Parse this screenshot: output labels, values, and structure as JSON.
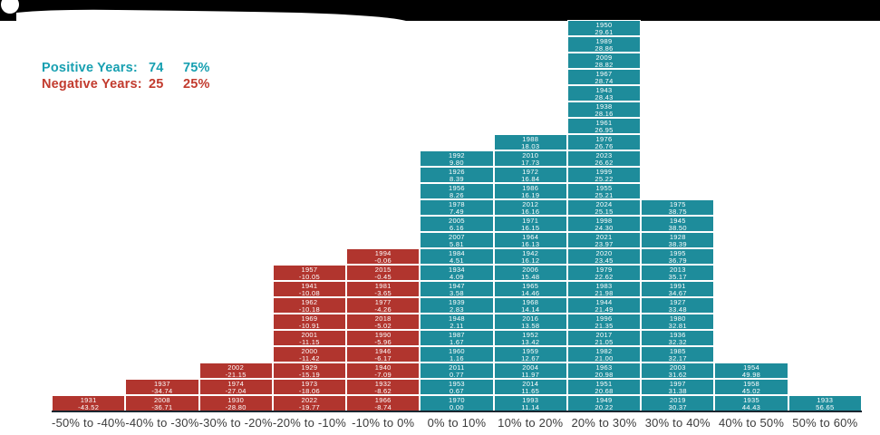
{
  "legend": {
    "positive_label": "Positive Years:",
    "positive_count": "74",
    "positive_pct": "75%",
    "negative_label": "Negative Years:",
    "negative_count": "25",
    "negative_pct": "25%"
  },
  "colors": {
    "positive_cell": "#1E8C9B",
    "negative_cell": "#B1352E",
    "legend_positive_text": "#18A0B1",
    "legend_negative_text": "#C23B2E",
    "axis_line": "#1A2630",
    "axis_text": "#3C3C3C",
    "cell_text": "#FFFFFF"
  },
  "chart_data": {
    "type": "bar",
    "title": "",
    "xlabel": "",
    "ylabel": "",
    "legend_position": "top-left",
    "grid": false,
    "note": "Stacked-year histogram of annual returns; each cell shows year and return %, stacked top-to-bottom in descending return order within each bin.",
    "categories": [
      "-50% to -40%",
      "-40% to -30%",
      "-30% to -20%",
      "-20% to -10%",
      "-10% to 0%",
      "0% to 10%",
      "10% to 20%",
      "20% to 30%",
      "30% to 40%",
      "40% to 50%",
      "50% to 60%"
    ],
    "values": [
      1,
      2,
      3,
      9,
      10,
      16,
      17,
      24,
      13,
      3,
      1
    ],
    "bins": [
      {
        "range": "-50% to -40%",
        "sign": "negative",
        "entries": [
          {
            "year": 1931,
            "value": -43.52
          }
        ]
      },
      {
        "range": "-40% to -30%",
        "sign": "negative",
        "entries": [
          {
            "year": 1937,
            "value": -34.74
          },
          {
            "year": 2008,
            "value": -36.71
          }
        ]
      },
      {
        "range": "-30% to -20%",
        "sign": "negative",
        "entries": [
          {
            "year": 2002,
            "value": -21.15
          },
          {
            "year": 1974,
            "value": -27.04
          },
          {
            "year": 1930,
            "value": -28.8
          }
        ]
      },
      {
        "range": "-20% to -10%",
        "sign": "negative",
        "entries": [
          {
            "year": 1957,
            "value": -10.05
          },
          {
            "year": 1941,
            "value": -10.08
          },
          {
            "year": 1962,
            "value": -10.18
          },
          {
            "year": 1969,
            "value": -10.91
          },
          {
            "year": 2001,
            "value": -11.15
          },
          {
            "year": 2000,
            "value": -11.42
          },
          {
            "year": 1929,
            "value": -15.19
          },
          {
            "year": 1973,
            "value": -18.06
          },
          {
            "year": 2022,
            "value": -19.77
          }
        ]
      },
      {
        "range": "-10% to 0%",
        "sign": "negative",
        "entries": [
          {
            "year": 1994,
            "value": -0.06
          },
          {
            "year": 2015,
            "value": -0.45
          },
          {
            "year": 1981,
            "value": -3.65
          },
          {
            "year": 1977,
            "value": -4.26
          },
          {
            "year": 2018,
            "value": -5.02
          },
          {
            "year": 1990,
            "value": -5.96
          },
          {
            "year": 1946,
            "value": -6.17
          },
          {
            "year": 1940,
            "value": -7.09
          },
          {
            "year": 1932,
            "value": -8.62
          },
          {
            "year": 1966,
            "value": -8.74
          }
        ]
      },
      {
        "range": "0% to 10%",
        "sign": "positive",
        "entries": [
          {
            "year": 1992,
            "value": 9.8
          },
          {
            "year": 1926,
            "value": 8.39
          },
          {
            "year": 1956,
            "value": 8.26
          },
          {
            "year": 1978,
            "value": 7.49
          },
          {
            "year": 2005,
            "value": 6.16
          },
          {
            "year": 2007,
            "value": 5.81
          },
          {
            "year": 1984,
            "value": 4.51
          },
          {
            "year": 1934,
            "value": 4.09
          },
          {
            "year": 1947,
            "value": 3.58
          },
          {
            "year": 1939,
            "value": 2.83
          },
          {
            "year": 1948,
            "value": 2.11
          },
          {
            "year": 1987,
            "value": 1.67
          },
          {
            "year": 1960,
            "value": 1.16
          },
          {
            "year": 2011,
            "value": 0.77
          },
          {
            "year": 1953,
            "value": 0.67
          },
          {
            "year": 1970,
            "value": 0.0
          }
        ]
      },
      {
        "range": "10% to 20%",
        "sign": "positive",
        "entries": [
          {
            "year": 1988,
            "value": 18.03
          },
          {
            "year": 2010,
            "value": 17.73
          },
          {
            "year": 1972,
            "value": 16.84
          },
          {
            "year": 1986,
            "value": 16.19
          },
          {
            "year": 2012,
            "value": 16.16
          },
          {
            "year": 1971,
            "value": 16.15
          },
          {
            "year": 1964,
            "value": 16.13
          },
          {
            "year": 1942,
            "value": 16.12
          },
          {
            "year": 2006,
            "value": 15.48
          },
          {
            "year": 1965,
            "value": 14.46
          },
          {
            "year": 1968,
            "value": 14.14
          },
          {
            "year": 2016,
            "value": 13.58
          },
          {
            "year": 1952,
            "value": 13.42
          },
          {
            "year": 1959,
            "value": 12.67
          },
          {
            "year": 2004,
            "value": 11.97
          },
          {
            "year": 2014,
            "value": 11.65
          },
          {
            "year": 1993,
            "value": 11.14
          }
        ]
      },
      {
        "range": "20% to 30%",
        "sign": "positive",
        "entries": [
          {
            "year": 1950,
            "value": 29.61
          },
          {
            "year": 1989,
            "value": 28.86
          },
          {
            "year": 2009,
            "value": 28.82
          },
          {
            "year": 1967,
            "value": 28.74
          },
          {
            "year": 1943,
            "value": 28.43
          },
          {
            "year": 1938,
            "value": 28.16
          },
          {
            "year": 1961,
            "value": 26.95
          },
          {
            "year": 1976,
            "value": 26.76
          },
          {
            "year": 2023,
            "value": 26.62
          },
          {
            "year": 1999,
            "value": 25.22
          },
          {
            "year": 1955,
            "value": 25.21
          },
          {
            "year": 2024,
            "value": 25.15
          },
          {
            "year": 1998,
            "value": 24.3
          },
          {
            "year": 2021,
            "value": 23.97
          },
          {
            "year": 2020,
            "value": 23.45
          },
          {
            "year": 1979,
            "value": 22.62
          },
          {
            "year": 1983,
            "value": 21.98
          },
          {
            "year": 1944,
            "value": 21.49
          },
          {
            "year": 1996,
            "value": 21.35
          },
          {
            "year": 2017,
            "value": 21.05
          },
          {
            "year": 1982,
            "value": 21.0
          },
          {
            "year": 1963,
            "value": 20.98
          },
          {
            "year": 1951,
            "value": 20.68
          },
          {
            "year": 1949,
            "value": 20.22
          }
        ]
      },
      {
        "range": "30% to 40%",
        "sign": "positive",
        "entries": [
          {
            "year": 1975,
            "value": 38.75
          },
          {
            "year": 1945,
            "value": 38.5
          },
          {
            "year": 1928,
            "value": 38.39
          },
          {
            "year": 1995,
            "value": 36.79
          },
          {
            "year": 2013,
            "value": 35.17
          },
          {
            "year": 1991,
            "value": 34.67
          },
          {
            "year": 1927,
            "value": 33.48
          },
          {
            "year": 1980,
            "value": 32.81
          },
          {
            "year": 1936,
            "value": 32.32
          },
          {
            "year": 1985,
            "value": 32.17
          },
          {
            "year": 2003,
            "value": 31.62
          },
          {
            "year": 1997,
            "value": 31.38
          },
          {
            "year": 2019,
            "value": 30.37
          }
        ]
      },
      {
        "range": "40% to 50%",
        "sign": "positive",
        "entries": [
          {
            "year": 1954,
            "value": 49.98
          },
          {
            "year": 1958,
            "value": 45.02
          },
          {
            "year": 1935,
            "value": 44.43
          }
        ]
      },
      {
        "range": "50% to 60%",
        "sign": "positive",
        "entries": [
          {
            "year": 1933,
            "value": 56.65
          }
        ]
      }
    ]
  }
}
